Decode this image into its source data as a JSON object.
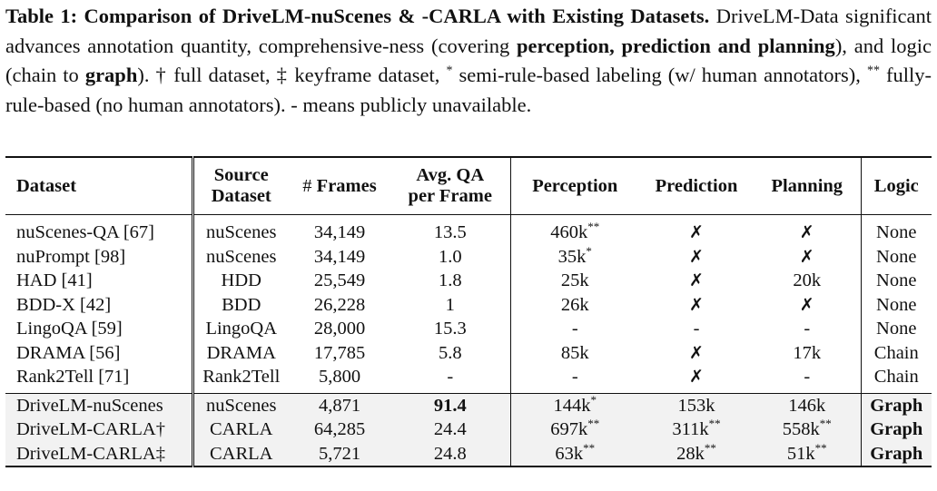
{
  "caption": {
    "table_label": "Table 1:",
    "title": "Comparison of DriveLM-nuScenes & -CARLA with Existing Datasets.",
    "text1": "DriveLM-Data significant advances annotation quantity, comprehensive-ness (covering",
    "bold1": "perception, prediction and planning",
    "text2": "), and logic (chain to",
    "bold2": "graph",
    "text3": ").",
    "dagger_note": "† full dataset, ‡ keyframe dataset,",
    "star_sup": "*",
    "star_note": "semi-rule-based labeling (w/ human annotators),",
    "dstar_sup": "**",
    "dstar_note": "fully-rule-based (no human annotators). - means publicly unavailable."
  },
  "headers": {
    "dataset": "Dataset",
    "source_line1": "Source",
    "source_line2": "Dataset",
    "frames_hash": "#",
    "frames": "Frames",
    "avgqa_line1": "Avg. QA",
    "avgqa_line2": "per Frame",
    "perception": "Perception",
    "prediction": "Prediction",
    "planning": "Planning",
    "logic": "Logic"
  },
  "rows": [
    {
      "dataset": "nuScenes-QA [67]",
      "source": "nuScenes",
      "frames": "34,149",
      "avg_qa": "13.5",
      "perception": "460k",
      "perception_sup": "**",
      "prediction": "✗",
      "prediction_sup": "",
      "planning": "✗",
      "planning_sup": "",
      "logic": "None"
    },
    {
      "dataset": "nuPrompt [98]",
      "source": "nuScenes",
      "frames": "34,149",
      "avg_qa": "1.0",
      "perception": "35k",
      "perception_sup": "*",
      "prediction": "✗",
      "prediction_sup": "",
      "planning": "✗",
      "planning_sup": "",
      "logic": "None"
    },
    {
      "dataset": "HAD [41]",
      "source": "HDD",
      "frames": "25,549",
      "avg_qa": "1.8",
      "perception": "25k",
      "perception_sup": "",
      "prediction": "✗",
      "prediction_sup": "",
      "planning": "20k",
      "planning_sup": "",
      "logic": "None"
    },
    {
      "dataset": "BDD-X [42]",
      "source": "BDD",
      "frames": "26,228",
      "avg_qa": "1",
      "perception": "26k",
      "perception_sup": "",
      "prediction": "✗",
      "prediction_sup": "",
      "planning": "✗",
      "planning_sup": "",
      "logic": "None"
    },
    {
      "dataset": "LingoQA [59]",
      "source": "LingoQA",
      "frames": "28,000",
      "avg_qa": "15.3",
      "perception": "-",
      "perception_sup": "",
      "prediction": "-",
      "prediction_sup": "",
      "planning": "-",
      "planning_sup": "",
      "logic": "None"
    },
    {
      "dataset": "DRAMA [56]",
      "source": "DRAMA",
      "frames": "17,785",
      "avg_qa": "5.8",
      "perception": "85k",
      "perception_sup": "",
      "prediction": "✗",
      "prediction_sup": "",
      "planning": "17k",
      "planning_sup": "",
      "logic": "Chain"
    },
    {
      "dataset": "Rank2Tell [71]",
      "source": "Rank2Tell",
      "frames": "5,800",
      "avg_qa": "-",
      "perception": "-",
      "perception_sup": "",
      "prediction": "✗",
      "prediction_sup": "",
      "planning": "-",
      "planning_sup": "",
      "logic": "Chain"
    }
  ],
  "drivelm_rows": [
    {
      "dataset": "DriveLM-nuScenes",
      "source": "nuScenes",
      "frames": "4,871",
      "avg_qa": "91.4",
      "perception": "144k",
      "perception_sup": "*",
      "prediction": "153k",
      "prediction_sup": "",
      "planning": "146k",
      "planning_sup": "",
      "logic": "Graph"
    },
    {
      "dataset": "DriveLM-CARLA†",
      "source": "CARLA",
      "frames": "64,285",
      "avg_qa": "24.4",
      "perception": "697k",
      "perception_sup": "**",
      "prediction": "311k",
      "prediction_sup": "**",
      "planning": "558k",
      "planning_sup": "**",
      "logic": "Graph"
    },
    {
      "dataset": "DriveLM-CARLA‡",
      "source": "CARLA",
      "frames": "5,721",
      "avg_qa": "24.8",
      "perception": "63k",
      "perception_sup": "**",
      "prediction": "28k",
      "prediction_sup": "**",
      "planning": "51k",
      "planning_sup": "**",
      "logic": "Graph"
    }
  ]
}
